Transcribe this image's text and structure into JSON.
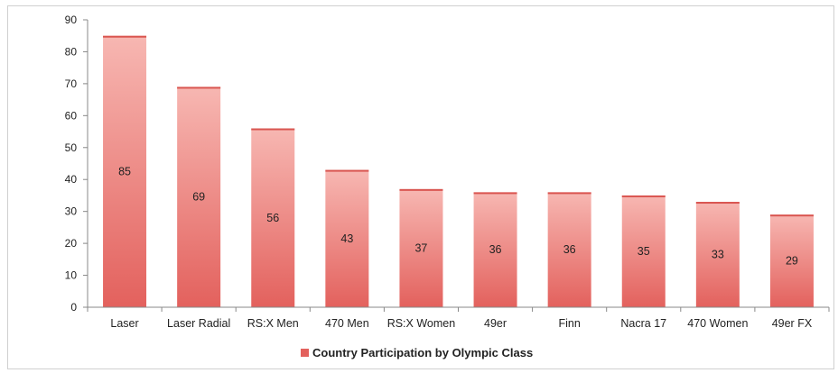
{
  "chart_data": {
    "type": "bar",
    "categories": [
      "Laser",
      "Laser Radial",
      "RS:X Men",
      "470 Men",
      "RS:X Women",
      "49er",
      "Finn",
      "Nacra 17",
      "470 Women",
      "49er FX"
    ],
    "series": [
      {
        "name": "Country Participation by Olympic Class",
        "values": [
          85,
          69,
          56,
          43,
          37,
          36,
          36,
          35,
          33,
          29
        ]
      }
    ],
    "ylim": [
      0,
      90
    ],
    "yticks": [
      0,
      10,
      20,
      30,
      40,
      50,
      60,
      70,
      80,
      90
    ],
    "xlabel": "",
    "ylabel": "",
    "title": "",
    "grid": false,
    "legend_position": "bottom",
    "colors": {
      "bar_light": "#f7b7b2",
      "bar_dark": "#e3615d",
      "bar_top": "#d95550",
      "legend_swatch": "#e3615d",
      "axis": "#888888"
    }
  }
}
